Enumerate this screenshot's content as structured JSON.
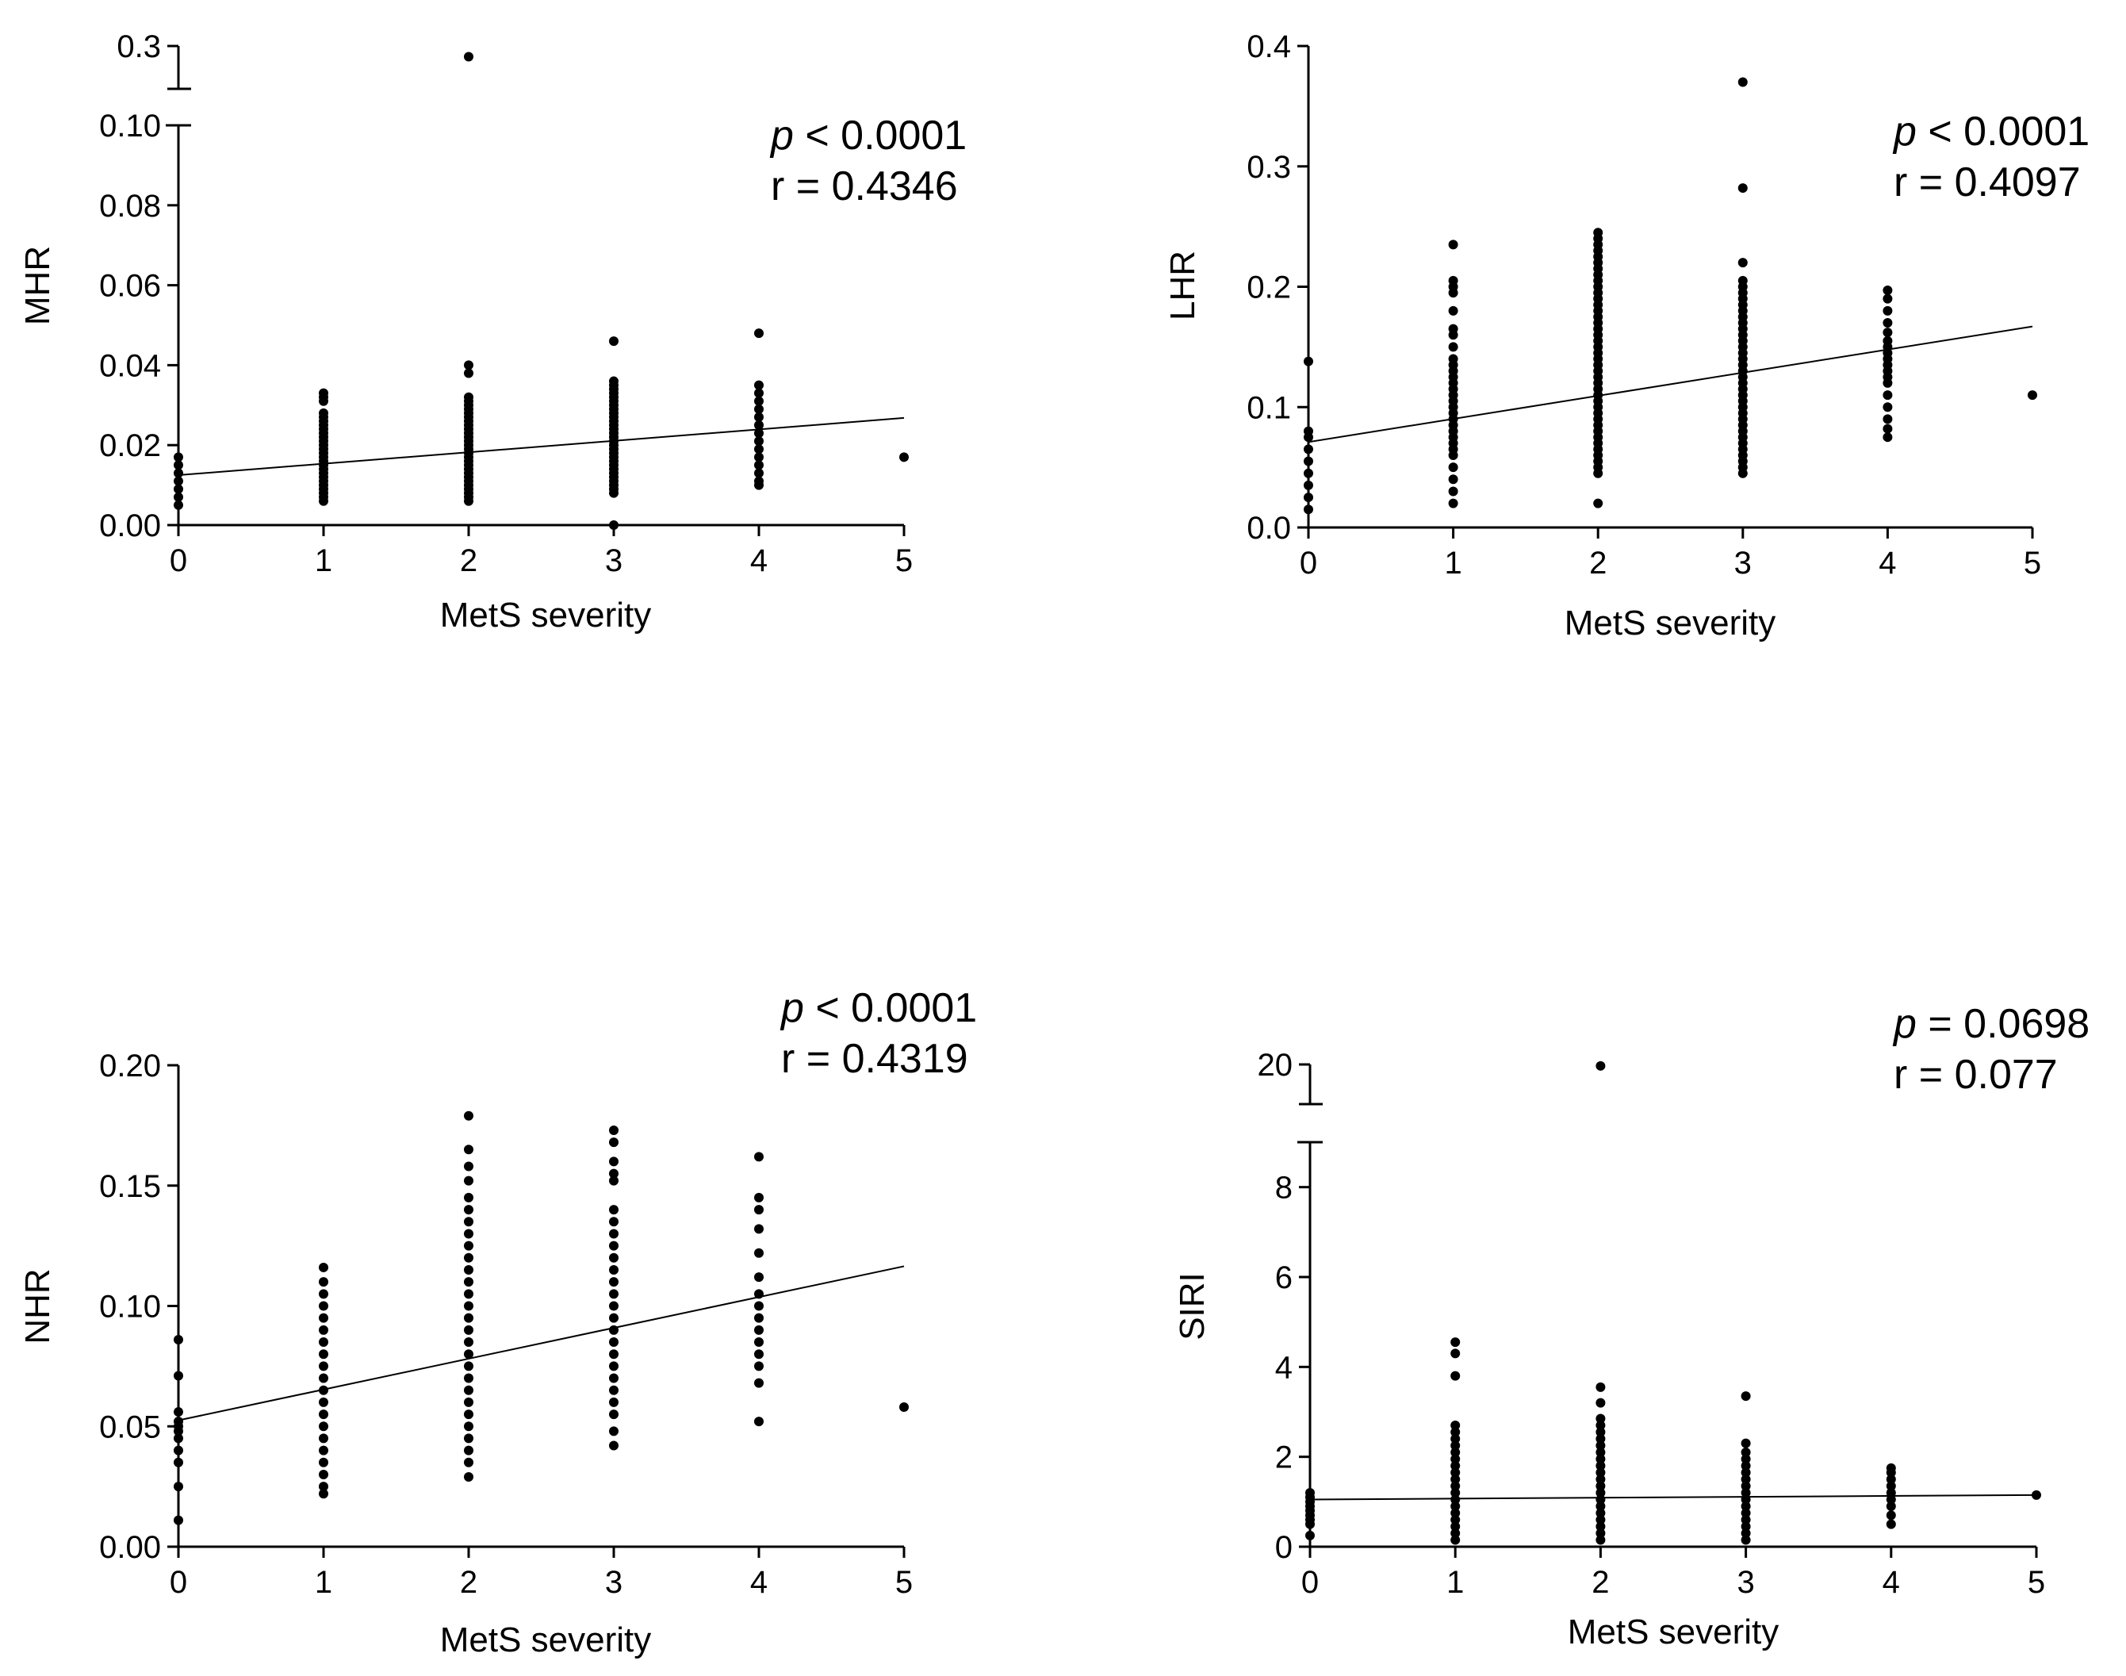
{
  "figure": {
    "background": "#ffffff",
    "ink": "#000000"
  },
  "chart_data": [
    {
      "type": "scatter",
      "id": "mhr",
      "xlabel": "MetS severity",
      "ylabel": "MHR",
      "xlim": [
        0,
        5
      ],
      "xticks": [
        "0",
        "1",
        "2",
        "3",
        "4",
        "5"
      ],
      "ylim": [
        0,
        0.1
      ],
      "yticks": [
        "0.00",
        "0.02",
        "0.04",
        "0.06",
        "0.08",
        "0.10"
      ],
      "broken_axis": {
        "upper_tick": "0.3",
        "upper_value": 0.3
      },
      "annotation": {
        "p_symbol": "p",
        "p_text": "< 0.0001",
        "r_text": "r = 0.4346"
      },
      "fit_line": {
        "x": [
          0,
          5
        ],
        "y": [
          0.0125,
          0.0268
        ]
      },
      "points": [
        {
          "x": 0,
          "y": [
            0.005,
            0.007,
            0.009,
            0.011,
            0.013,
            0.015,
            0.017
          ]
        },
        {
          "x": 1,
          "y": [
            0.006,
            0.007,
            0.008,
            0.009,
            0.01,
            0.011,
            0.012,
            0.013,
            0.014,
            0.015,
            0.016,
            0.017,
            0.018,
            0.019,
            0.02,
            0.021,
            0.022,
            0.023,
            0.024,
            0.025,
            0.026,
            0.027,
            0.028,
            0.031,
            0.032,
            0.033
          ]
        },
        {
          "x": 2,
          "y": [
            0.006,
            0.007,
            0.008,
            0.009,
            0.01,
            0.011,
            0.012,
            0.013,
            0.014,
            0.015,
            0.016,
            0.017,
            0.018,
            0.019,
            0.02,
            0.021,
            0.022,
            0.023,
            0.024,
            0.025,
            0.026,
            0.027,
            0.028,
            0.029,
            0.03,
            0.031,
            0.032,
            0.038,
            0.04
          ]
        },
        {
          "x": 3,
          "y": [
            0.0,
            0.008,
            0.009,
            0.01,
            0.011,
            0.012,
            0.013,
            0.014,
            0.015,
            0.016,
            0.017,
            0.018,
            0.019,
            0.02,
            0.021,
            0.022,
            0.023,
            0.024,
            0.025,
            0.026,
            0.027,
            0.028,
            0.029,
            0.03,
            0.031,
            0.032,
            0.033,
            0.034,
            0.035,
            0.036,
            0.046
          ]
        },
        {
          "x": 4,
          "y": [
            0.01,
            0.011,
            0.013,
            0.015,
            0.017,
            0.019,
            0.021,
            0.023,
            0.025,
            0.027,
            0.029,
            0.031,
            0.033,
            0.035,
            0.048
          ]
        },
        {
          "x": 5,
          "y": [
            0.017
          ]
        }
      ],
      "outliers": [
        {
          "x": 2,
          "y": 0.25
        }
      ]
    },
    {
      "type": "scatter",
      "id": "lhr",
      "xlabel": "MetS severity",
      "ylabel": "LHR",
      "xlim": [
        0,
        5
      ],
      "xticks": [
        "0",
        "1",
        "2",
        "3",
        "4",
        "5"
      ],
      "ylim": [
        0,
        0.4
      ],
      "yticks": [
        "0.0",
        "0.1",
        "0.2",
        "0.3",
        "0.4"
      ],
      "annotation": {
        "p_symbol": "p",
        "p_text": "< 0.0001",
        "r_text": "r = 0.4097"
      },
      "fit_line": {
        "x": [
          0,
          5
        ],
        "y": [
          0.071,
          0.167
        ]
      },
      "points": [
        {
          "x": 0,
          "y": [
            0.015,
            0.025,
            0.035,
            0.045,
            0.055,
            0.065,
            0.075,
            0.08,
            0.138
          ]
        },
        {
          "x": 1,
          "y": [
            0.02,
            0.03,
            0.04,
            0.05,
            0.06,
            0.065,
            0.07,
            0.075,
            0.08,
            0.085,
            0.09,
            0.095,
            0.1,
            0.105,
            0.11,
            0.115,
            0.12,
            0.125,
            0.13,
            0.135,
            0.14,
            0.15,
            0.16,
            0.165,
            0.18,
            0.195,
            0.2,
            0.205,
            0.235
          ]
        },
        {
          "x": 2,
          "y": [
            0.02,
            0.045,
            0.05,
            0.055,
            0.06,
            0.065,
            0.07,
            0.075,
            0.08,
            0.085,
            0.09,
            0.095,
            0.1,
            0.105,
            0.11,
            0.115,
            0.12,
            0.125,
            0.13,
            0.135,
            0.14,
            0.145,
            0.15,
            0.155,
            0.16,
            0.165,
            0.17,
            0.175,
            0.18,
            0.185,
            0.19,
            0.195,
            0.2,
            0.205,
            0.21,
            0.215,
            0.22,
            0.225,
            0.23,
            0.235,
            0.24,
            0.245
          ]
        },
        {
          "x": 3,
          "y": [
            0.045,
            0.05,
            0.055,
            0.06,
            0.065,
            0.07,
            0.075,
            0.08,
            0.085,
            0.09,
            0.095,
            0.1,
            0.105,
            0.11,
            0.115,
            0.12,
            0.125,
            0.13,
            0.135,
            0.14,
            0.145,
            0.15,
            0.155,
            0.16,
            0.165,
            0.17,
            0.175,
            0.18,
            0.185,
            0.19,
            0.195,
            0.2,
            0.205,
            0.22,
            0.282,
            0.37
          ]
        },
        {
          "x": 4,
          "y": [
            0.075,
            0.082,
            0.09,
            0.1,
            0.11,
            0.12,
            0.125,
            0.13,
            0.135,
            0.14,
            0.145,
            0.15,
            0.155,
            0.162,
            0.17,
            0.18,
            0.19,
            0.197
          ]
        },
        {
          "x": 5,
          "y": [
            0.11
          ]
        }
      ]
    },
    {
      "type": "scatter",
      "id": "nhr",
      "xlabel": "MetS severity",
      "ylabel": "NHR",
      "xlim": [
        0,
        5
      ],
      "xticks": [
        "0",
        "1",
        "2",
        "3",
        "4",
        "5"
      ],
      "ylim": [
        0,
        0.2
      ],
      "yticks": [
        "0.00",
        "0.05",
        "0.10",
        "0.15",
        "0.20"
      ],
      "annotation": {
        "p_symbol": "p",
        "p_text": "< 0.0001",
        "r_text": "r = 0.4319"
      },
      "fit_line": {
        "x": [
          0,
          5
        ],
        "y": [
          0.0525,
          0.1165
        ]
      },
      "points": [
        {
          "x": 0,
          "y": [
            0.011,
            0.025,
            0.035,
            0.04,
            0.045,
            0.048,
            0.05,
            0.052,
            0.056,
            0.071,
            0.086
          ]
        },
        {
          "x": 1,
          "y": [
            0.022,
            0.025,
            0.03,
            0.035,
            0.04,
            0.045,
            0.05,
            0.055,
            0.06,
            0.065,
            0.07,
            0.075,
            0.08,
            0.085,
            0.09,
            0.095,
            0.1,
            0.105,
            0.11,
            0.116
          ]
        },
        {
          "x": 2,
          "y": [
            0.029,
            0.035,
            0.04,
            0.045,
            0.05,
            0.055,
            0.06,
            0.065,
            0.07,
            0.075,
            0.08,
            0.085,
            0.09,
            0.095,
            0.1,
            0.105,
            0.11,
            0.115,
            0.12,
            0.125,
            0.13,
            0.135,
            0.14,
            0.145,
            0.152,
            0.158,
            0.165,
            0.179
          ]
        },
        {
          "x": 3,
          "y": [
            0.042,
            0.048,
            0.055,
            0.06,
            0.065,
            0.07,
            0.075,
            0.08,
            0.085,
            0.09,
            0.095,
            0.1,
            0.105,
            0.11,
            0.115,
            0.12,
            0.125,
            0.13,
            0.135,
            0.14,
            0.152,
            0.155,
            0.16,
            0.168,
            0.173
          ]
        },
        {
          "x": 4,
          "y": [
            0.052,
            0.068,
            0.075,
            0.08,
            0.085,
            0.09,
            0.095,
            0.1,
            0.105,
            0.112,
            0.122,
            0.132,
            0.14,
            0.145,
            0.162
          ]
        },
        {
          "x": 5,
          "y": [
            0.058
          ]
        }
      ]
    },
    {
      "type": "scatter",
      "id": "siri",
      "xlabel": "MetS severity",
      "ylabel": "SIRI",
      "xlim": [
        0,
        5
      ],
      "xticks": [
        "0",
        "1",
        "2",
        "3",
        "4",
        "5"
      ],
      "ylim": [
        0,
        9
      ],
      "yticks": [
        "0",
        "2",
        "4",
        "6",
        "8"
      ],
      "broken_axis": {
        "upper_tick": "20",
        "upper_value": 20
      },
      "annotation": {
        "p_symbol": "p",
        "p_text": "= 0.0698",
        "r_text": "r = 0.077"
      },
      "fit_line": {
        "x": [
          0,
          5
        ],
        "y": [
          1.05,
          1.15
        ]
      },
      "points": [
        {
          "x": 0,
          "y": [
            0.25,
            0.5,
            0.6,
            0.7,
            0.8,
            0.9,
            1.0,
            1.1,
            1.2
          ]
        },
        {
          "x": 1,
          "y": [
            0.15,
            0.3,
            0.45,
            0.6,
            0.75,
            0.9,
            1.05,
            1.2,
            1.35,
            1.5,
            1.65,
            1.8,
            1.95,
            2.1,
            2.25,
            2.4,
            2.55,
            2.7,
            3.8,
            4.3,
            4.55
          ]
        },
        {
          "x": 2,
          "y": [
            0.15,
            0.3,
            0.45,
            0.6,
            0.75,
            0.9,
            1.05,
            1.2,
            1.35,
            1.5,
            1.65,
            1.8,
            1.95,
            2.1,
            2.25,
            2.4,
            2.55,
            2.7,
            2.85,
            3.2,
            3.55
          ]
        },
        {
          "x": 3,
          "y": [
            0.15,
            0.3,
            0.45,
            0.6,
            0.75,
            0.9,
            1.05,
            1.2,
            1.35,
            1.5,
            1.65,
            1.8,
            1.95,
            2.1,
            2.3,
            3.35
          ]
        },
        {
          "x": 4,
          "y": [
            0.5,
            0.7,
            0.9,
            1.05,
            1.2,
            1.35,
            1.5,
            1.65,
            1.75
          ]
        },
        {
          "x": 5,
          "y": [
            1.15
          ]
        }
      ],
      "outliers": [
        {
          "x": 2,
          "y": 19.6
        }
      ]
    }
  ]
}
